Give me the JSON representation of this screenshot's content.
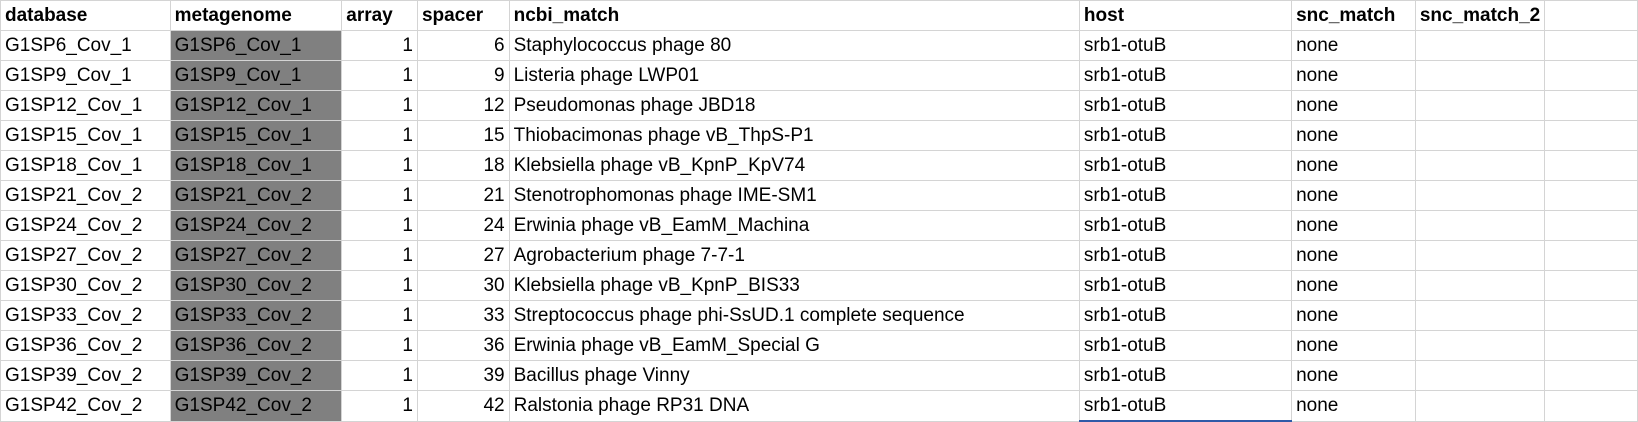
{
  "columns": [
    "database",
    "metagenome",
    "array",
    "spacer",
    "ncbi_match",
    "host",
    "snc_match",
    "snc_match_2",
    ""
  ],
  "rows": [
    [
      "G1SP6_Cov_1",
      "G1SP6_Cov_1",
      "1",
      "6",
      "Staphylococcus phage 80",
      "srb1-otuB",
      "none",
      "",
      ""
    ],
    [
      "G1SP9_Cov_1",
      "G1SP9_Cov_1",
      "1",
      "9",
      "Listeria phage LWP01",
      "srb1-otuB",
      "none",
      "",
      ""
    ],
    [
      "G1SP12_Cov_1",
      "G1SP12_Cov_1",
      "1",
      "12",
      "Pseudomonas phage JBD18",
      "srb1-otuB",
      "none",
      "",
      ""
    ],
    [
      "G1SP15_Cov_1",
      "G1SP15_Cov_1",
      "1",
      "15",
      "Thiobacimonas phage vB_ThpS-P1",
      "srb1-otuB",
      "none",
      "",
      ""
    ],
    [
      "G1SP18_Cov_1",
      "G1SP18_Cov_1",
      "1",
      "18",
      "Klebsiella phage vB_KpnP_KpV74",
      "srb1-otuB",
      "none",
      "",
      ""
    ],
    [
      "G1SP21_Cov_2",
      "G1SP21_Cov_2",
      "1",
      "21",
      "Stenotrophomonas phage IME-SM1",
      "srb1-otuB",
      "none",
      "",
      ""
    ],
    [
      "G1SP24_Cov_2",
      "G1SP24_Cov_2",
      "1",
      "24",
      "Erwinia phage vB_EamM_Machina",
      "srb1-otuB",
      "none",
      "",
      ""
    ],
    [
      "G1SP27_Cov_2",
      "G1SP27_Cov_2",
      "1",
      "27",
      "Agrobacterium phage 7-7-1",
      "srb1-otuB",
      "none",
      "",
      ""
    ],
    [
      "G1SP30_Cov_2",
      "G1SP30_Cov_2",
      "1",
      "30",
      "Klebsiella phage vB_KpnP_BIS33",
      "srb1-otuB",
      "none",
      "",
      ""
    ],
    [
      "G1SP33_Cov_2",
      "G1SP33_Cov_2",
      "1",
      "33",
      "Streptococcus phage phi-SsUD.1 complete sequence",
      "srb1-otuB",
      "none",
      "",
      ""
    ],
    [
      "G1SP36_Cov_2",
      "G1SP36_Cov_2",
      "1",
      "36",
      "Erwinia phage vB_EamM_Special G",
      "srb1-otuB",
      "none",
      "",
      ""
    ],
    [
      "G1SP39_Cov_2",
      "G1SP39_Cov_2",
      "1",
      "39",
      "Bacillus phage Vinny",
      "srb1-otuB",
      "none",
      "",
      ""
    ],
    [
      "G1SP42_Cov_2",
      "G1SP42_Cov_2",
      "1",
      "42",
      "Ralstonia phage RP31 DNA",
      "srb1-otuB",
      "none",
      "",
      ""
    ]
  ],
  "colors": {
    "metagenome_fill": "#808080",
    "gridline": "#d4d4d4",
    "selection": "#2f5aa8"
  }
}
